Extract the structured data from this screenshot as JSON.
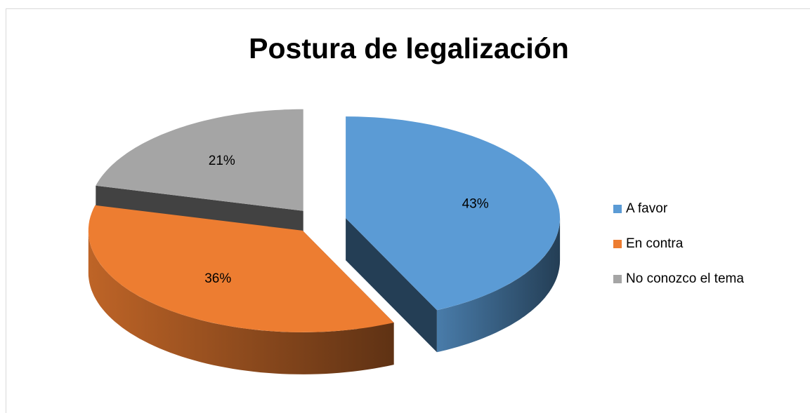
{
  "chart_data": {
    "type": "pie3d",
    "title": "Postura de legalización",
    "categories": [
      "A favor",
      "En contra",
      "No conozco el tema"
    ],
    "values": [
      43,
      36,
      21
    ],
    "value_labels": [
      "43%",
      "36%",
      "21%"
    ],
    "colors": [
      "#5b9bd5",
      "#ed7d31",
      "#a5a5a5"
    ],
    "legend": "right"
  }
}
